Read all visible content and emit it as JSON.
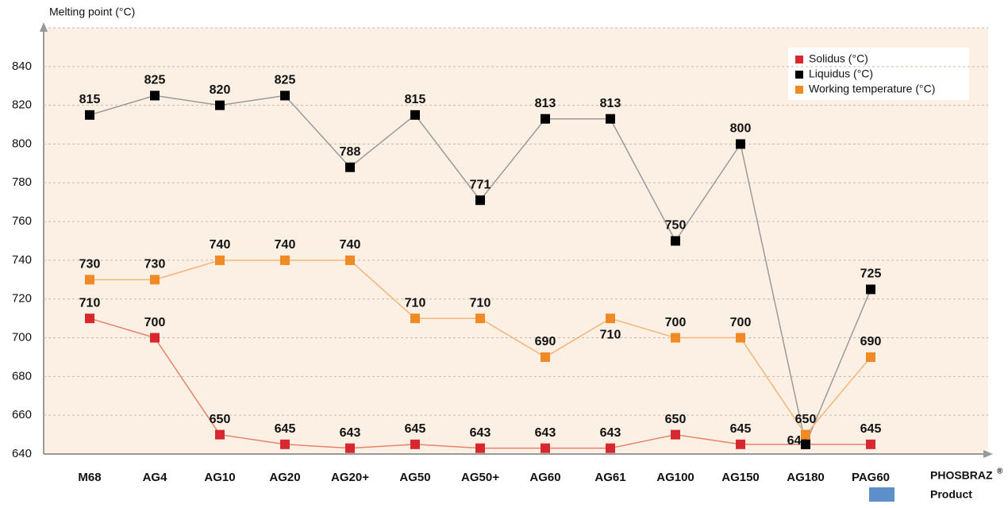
{
  "chart_data": {
    "type": "line",
    "y_label": "Melting point (°C)",
    "x_label_brand": "PHOSBRAZ",
    "x_label_mark": "®",
    "x_label": "Product",
    "categories": [
      "M68",
      "AG4",
      "AG10",
      "AG20",
      "AG20+",
      "AG50",
      "AG50+",
      "AG60",
      "AG61",
      "AG100",
      "AG150",
      "AG180",
      "PAG60"
    ],
    "series": [
      {
        "name": "Solidus (°C)",
        "color": "#d7282f",
        "line_color": "#e8836a",
        "values": [
          710,
          700,
          650,
          645,
          643,
          645,
          643,
          643,
          643,
          650,
          645,
          645,
          645
        ]
      },
      {
        "name": "Liquidus (°C)",
        "color": "#000000",
        "line_color": "#9a9a9a",
        "values": [
          815,
          825,
          820,
          825,
          788,
          815,
          771,
          813,
          813,
          750,
          800,
          645,
          725
        ],
        "value_labels": [
          "815",
          "825",
          "820",
          "825",
          "788",
          "815",
          "771",
          "813",
          "813",
          "750",
          "800",
          null,
          "725"
        ]
      },
      {
        "name": "Working temperature (°C)",
        "color": "#f08a24",
        "line_color": "#f5b478",
        "values": [
          730,
          730,
          740,
          740,
          740,
          710,
          710,
          690,
          710,
          700,
          700,
          650,
          690
        ]
      }
    ],
    "ylim": [
      640,
      860
    ],
    "yticks": [
      640,
      660,
      680,
      700,
      720,
      740,
      760,
      780,
      800,
      820,
      840
    ],
    "grid": true,
    "legend": "top-right"
  }
}
